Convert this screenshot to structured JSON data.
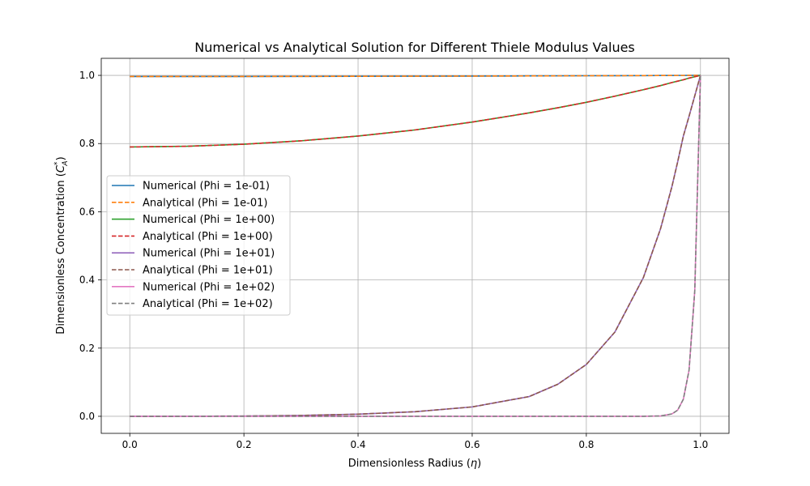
{
  "chart_data": {
    "type": "line",
    "title": "Numerical vs Analytical Solution for Different Thiele Modulus Values",
    "xlabel_main": "Dimensionless Radius (",
    "xlabel_symbol": "η",
    "xlabel_end": ")",
    "ylabel_main": "Dimensionless Concentration (",
    "ylabel_symbol": "C",
    "ylabel_sup": "*",
    "ylabel_sub": "A",
    "ylabel_end": ")",
    "xlim": [
      -0.05,
      1.05
    ],
    "ylim": [
      -0.05,
      1.05
    ],
    "xticks": [
      0.0,
      0.2,
      0.4,
      0.6,
      0.8,
      1.0
    ],
    "yticks": [
      0.0,
      0.2,
      0.4,
      0.6,
      0.8,
      1.0
    ],
    "xtick_labels": [
      "0.0",
      "0.2",
      "0.4",
      "0.6",
      "0.8",
      "1.0"
    ],
    "ytick_labels": [
      "0.0",
      "0.2",
      "0.4",
      "0.6",
      "0.8",
      "1.0"
    ],
    "grid": true,
    "legend_position": "center-left",
    "x": [
      0.0,
      0.1,
      0.2,
      0.3,
      0.4,
      0.5,
      0.6,
      0.7,
      0.75,
      0.8,
      0.85,
      0.9,
      0.93,
      0.95,
      0.96,
      0.97,
      0.98,
      0.99,
      1.0
    ],
    "series": [
      {
        "name": "Numerical (Phi = 1e-01)",
        "style": "solid",
        "color": "#1f77b4",
        "values": [
          0.9967,
          0.9967,
          0.9968,
          0.997,
          0.9973,
          0.9976,
          0.9979,
          0.9984,
          0.9986,
          0.9989,
          0.9991,
          0.9994,
          0.9996,
          0.9997,
          0.9998,
          0.9998,
          0.9999,
          0.9999,
          1.0
        ]
      },
      {
        "name": "Analytical (Phi = 1e-01)",
        "style": "dashed",
        "color": "#ff7f0e",
        "values": [
          0.9967,
          0.9967,
          0.9968,
          0.997,
          0.9973,
          0.9976,
          0.9979,
          0.9984,
          0.9986,
          0.9989,
          0.9991,
          0.9994,
          0.9996,
          0.9997,
          0.9998,
          0.9998,
          0.9999,
          0.9999,
          1.0
        ]
      },
      {
        "name": "Numerical (Phi = 1e+00)",
        "style": "solid",
        "color": "#2ca02c",
        "values": [
          0.79,
          0.792,
          0.798,
          0.808,
          0.822,
          0.84,
          0.863,
          0.89,
          0.905,
          0.921,
          0.939,
          0.958,
          0.97,
          0.979,
          0.983,
          0.987,
          0.992,
          0.996,
          1.0
        ]
      },
      {
        "name": "Analytical (Phi = 1e+00)",
        "style": "dashed",
        "color": "#d62728",
        "values": [
          0.79,
          0.792,
          0.798,
          0.808,
          0.822,
          0.84,
          0.863,
          0.89,
          0.905,
          0.921,
          0.939,
          0.958,
          0.97,
          0.979,
          0.983,
          0.987,
          0.992,
          0.996,
          1.0
        ]
      },
      {
        "name": "Numerical (Phi = 1e+01)",
        "style": "solid",
        "color": "#9467bd",
        "values": [
          0.0,
          0.0002,
          0.0008,
          0.0024,
          0.0062,
          0.0135,
          0.0275,
          0.058,
          0.094,
          0.152,
          0.247,
          0.407,
          0.55,
          0.674,
          0.746,
          0.822,
          0.88,
          0.94,
          1.0
        ]
      },
      {
        "name": "Analytical (Phi = 1e+01)",
        "style": "dashed",
        "color": "#8c564b",
        "values": [
          0.0,
          0.0002,
          0.0008,
          0.0024,
          0.0062,
          0.0135,
          0.0275,
          0.058,
          0.094,
          0.152,
          0.247,
          0.407,
          0.55,
          0.674,
          0.746,
          0.822,
          0.88,
          0.94,
          1.0
        ]
      },
      {
        "name": "Numerical (Phi = 1e+02)",
        "style": "solid",
        "color": "#e377c2",
        "values": [
          0.0,
          0.0,
          0.0,
          0.0,
          0.0,
          0.0,
          0.0,
          0.0,
          0.0,
          0.0,
          0.0,
          0.0001,
          0.001,
          0.007,
          0.018,
          0.05,
          0.135,
          0.368,
          1.0
        ]
      },
      {
        "name": "Analytical (Phi = 1e+02)",
        "style": "dashed",
        "color": "#7f7f7f",
        "values": [
          0.0,
          0.0,
          0.0,
          0.0,
          0.0,
          0.0,
          0.0,
          0.0,
          0.0,
          0.0,
          0.0,
          0.0001,
          0.001,
          0.007,
          0.018,
          0.05,
          0.135,
          0.368,
          1.0
        ]
      }
    ]
  }
}
